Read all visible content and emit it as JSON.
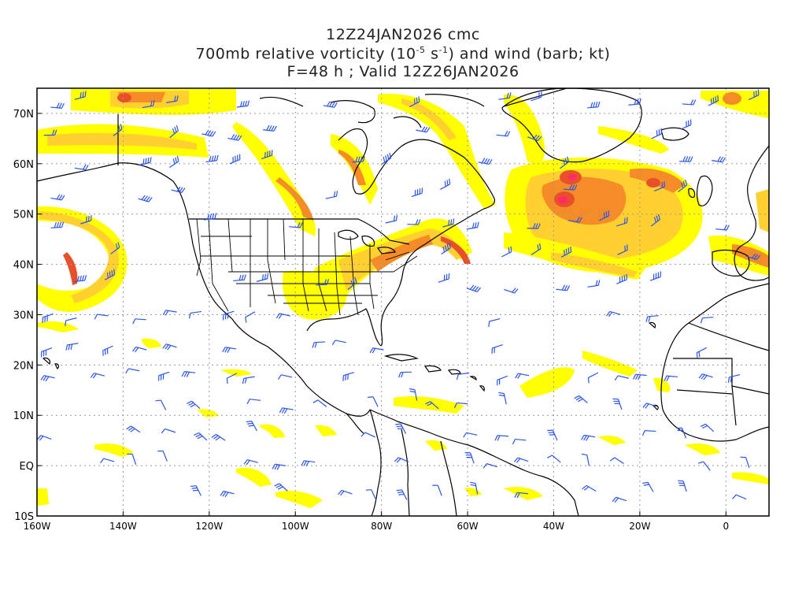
{
  "title": {
    "line1": "12Z24JAN2026 cmc",
    "line2_prefix": "700mb relative vorticity (10",
    "line2_exp1": "-5",
    "line2_mid": " s",
    "line2_exp2": "-1",
    "line2_suffix": ") and wind (barb; kt)",
    "line3": "F=48 h ; Valid 12Z26JAN2026"
  },
  "axes": {
    "x_labels": [
      "160W",
      "140W",
      "120W",
      "100W",
      "80W",
      "60W",
      "40W",
      "20W",
      "0"
    ],
    "y_labels": [
      "70N",
      "60N",
      "50N",
      "40N",
      "30N",
      "20N",
      "10N",
      "EQ",
      "10S"
    ],
    "lon_range": [
      -160,
      10
    ],
    "lat_range": [
      -10,
      75
    ]
  },
  "colors": {
    "vort_low": "#ffff00",
    "vort_mid": "#ffd030",
    "vort_high": "#f58c28",
    "vort_max": "#e8502a",
    "vort_peak": "#ff2a6a",
    "barb": "#2a55e8",
    "coast": "#000000",
    "grid": "#9a9a9a"
  },
  "vorticity_blobs": [
    {
      "lon": -140,
      "lat": 72,
      "level": "mid"
    },
    {
      "lon": -152,
      "lat": 45,
      "level": "high"
    },
    {
      "lon": -38,
      "lat": 55,
      "level": "peak"
    },
    {
      "lon": -15,
      "lat": 57,
      "level": "high"
    },
    {
      "lon": -65,
      "lat": 43,
      "level": "high"
    },
    {
      "lon": -95,
      "lat": 53,
      "level": "high"
    },
    {
      "lon": -88,
      "lat": 38,
      "level": "mid"
    },
    {
      "lon": -30,
      "lat": 43,
      "level": "high"
    }
  ]
}
